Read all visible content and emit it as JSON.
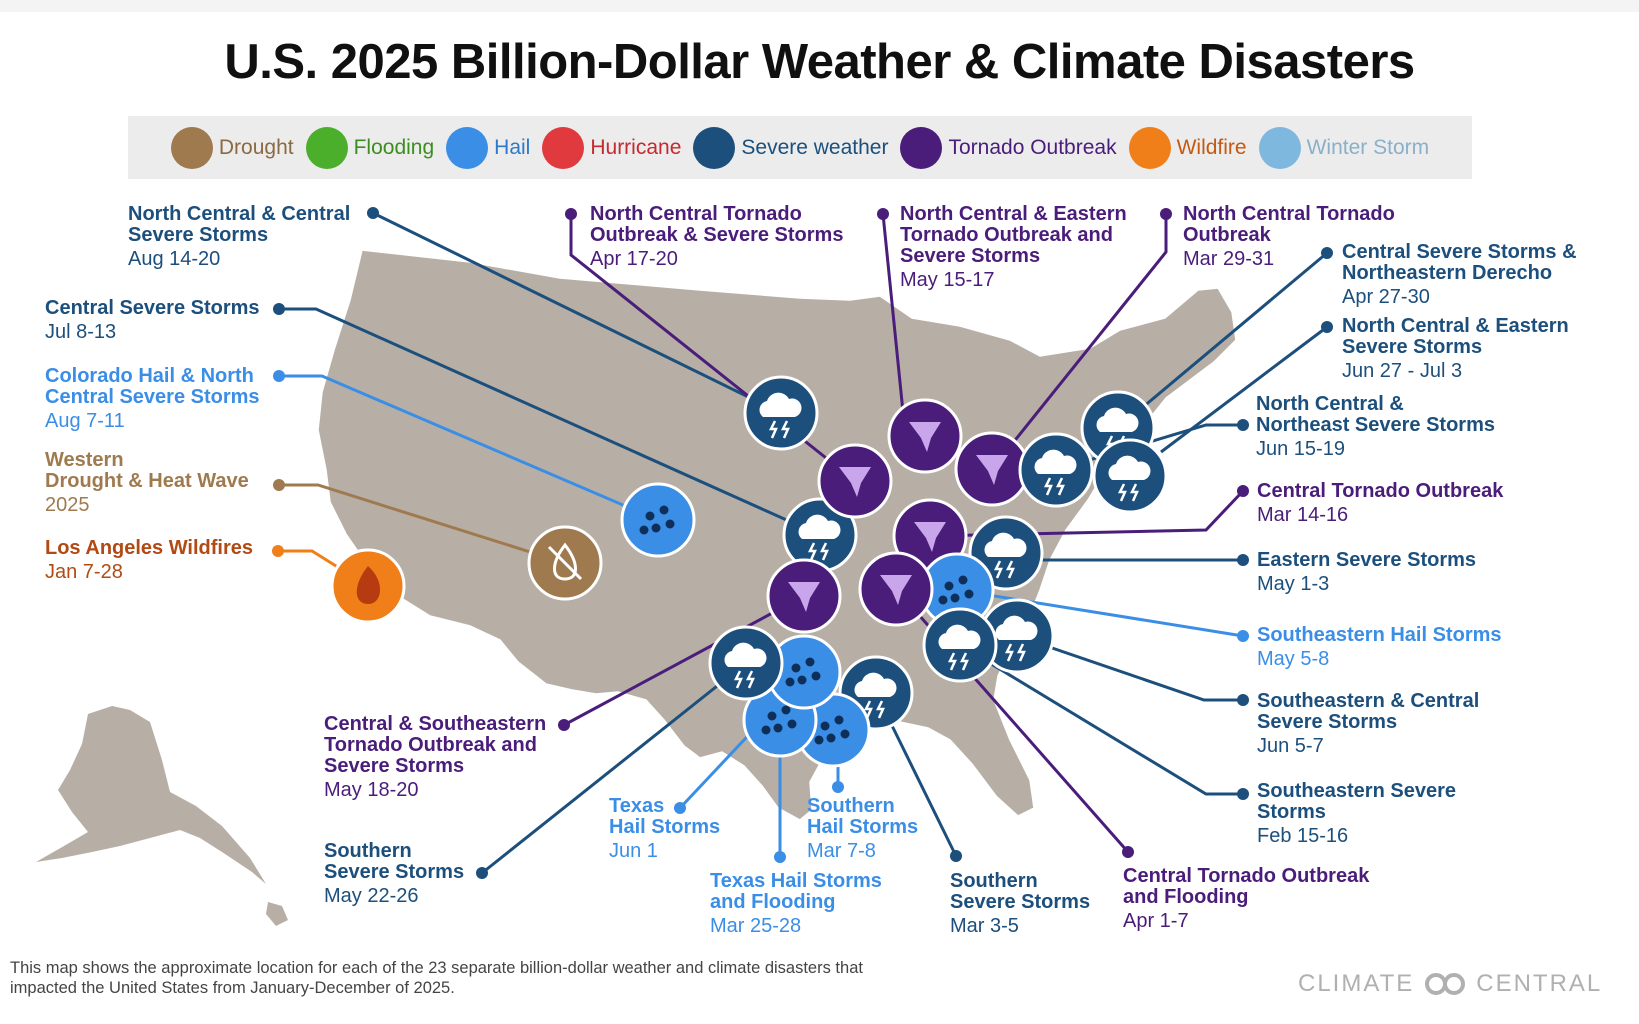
{
  "title": "U.S. 2025 Billion-Dollar Weather & Climate Disasters",
  "legend": [
    {
      "label": "Drought",
      "icon": "drought-icon",
      "color": "#a07a4f",
      "text_color": "#8b6a43"
    },
    {
      "label": "Flooding",
      "icon": "flooding-icon",
      "color": "#4caf2c",
      "text_color": "#3d8e20"
    },
    {
      "label": "Hail",
      "icon": "hail-icon",
      "color": "#3b8ee6",
      "text_color": "#2c78cc"
    },
    {
      "label": "Hurricane",
      "icon": "hurricane-icon",
      "color": "#e03a3e",
      "text_color": "#c42a30"
    },
    {
      "label": "Severe weather",
      "icon": "severe-weather-icon",
      "color": "#1c4f7c",
      "text_color": "#1c4f7c"
    },
    {
      "label": "Tornado Outbreak",
      "icon": "tornado-icon",
      "color": "#4a1d7a",
      "text_color": "#4a1d7a"
    },
    {
      "label": "Wildfire",
      "icon": "wildfire-icon",
      "color": "#f07f1a",
      "text_color": "#c45a10"
    },
    {
      "label": "Winter Storm",
      "icon": "winter-storm-icon",
      "color": "#7fb8de",
      "text_color": "#8ab0c9"
    }
  ],
  "events": [
    {
      "name": "North Central & Central\nSevere Storms",
      "date": "Aug 14-20",
      "type": "severe"
    },
    {
      "name": "Central Severe Storms",
      "date": "Jul 8-13",
      "type": "severe"
    },
    {
      "name": "Colorado Hail & North\nCentral Severe Storms",
      "date": "Aug 7-11",
      "type": "hail"
    },
    {
      "name": "Western\nDrought & Heat Wave",
      "date": "2025",
      "type": "drought"
    },
    {
      "name": "Los Angeles Wildfires",
      "date": "Jan 7-28",
      "type": "wildfire"
    },
    {
      "name": "North Central Tornado\nOutbreak & Severe Storms",
      "date": "Apr 17-20",
      "type": "tornado"
    },
    {
      "name": "North Central & Eastern\nTornado Outbreak and\nSevere Storms",
      "date": "May 15-17",
      "type": "tornado"
    },
    {
      "name": "North Central Tornado\nOutbreak",
      "date": "Mar 29-31",
      "type": "tornado"
    },
    {
      "name": "Central Severe Storms &\nNortheastern Derecho",
      "date": "Apr 27-30",
      "type": "severe"
    },
    {
      "name": "North Central & Eastern\nSevere Storms",
      "date": "Jun 27 - Jul 3",
      "type": "severe"
    },
    {
      "name": "North Central &\nNortheast Severe Storms",
      "date": "Jun 15-19",
      "type": "severe"
    },
    {
      "name": "Central Tornado Outbreak",
      "date": "Mar 14-16",
      "type": "tornado"
    },
    {
      "name": "Eastern Severe Storms",
      "date": "May 1-3",
      "type": "severe"
    },
    {
      "name": "Southeastern Hail Storms",
      "date": "May 5-8",
      "type": "hail"
    },
    {
      "name": "Southeastern & Central\nSevere Storms",
      "date": "Jun 5-7",
      "type": "severe"
    },
    {
      "name": "Southeastern Severe\nStorms",
      "date": "Feb 15-16",
      "type": "severe"
    },
    {
      "name": "Central Tornado Outbreak\nand Flooding",
      "date": "Apr 1-7",
      "type": "tornado"
    },
    {
      "name": "Southern\nSevere Storms",
      "date": "Mar 3-5",
      "type": "severe"
    },
    {
      "name": "Southern\nHail Storms",
      "date": "Mar 7-8",
      "type": "hail"
    },
    {
      "name": "Texas Hail Storms\nand Flooding",
      "date": "Mar 25-28",
      "type": "hail"
    },
    {
      "name": "Texas\nHail Storms",
      "date": "Jun 1",
      "type": "hail"
    },
    {
      "name": "Southern\nSevere Storms",
      "date": "May 22-26",
      "type": "severe"
    },
    {
      "name": "Central & Southeastern\nTornado Outbreak and\nSevere Storms",
      "date": "May 18-20",
      "type": "tornado"
    }
  ],
  "footnote": "This map shows the approximate location for each of the 23 separate billion-dollar weather and climate disasters that impacted the United States from January-December of 2025.",
  "brand": "CLIMATE CENTRAL"
}
